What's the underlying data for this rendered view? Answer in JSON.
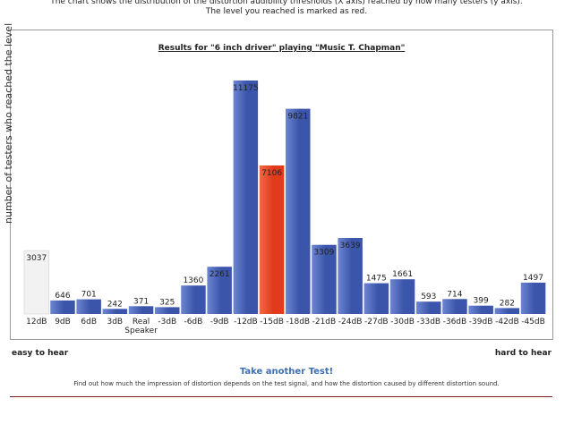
{
  "intro": {
    "line1": "The chart shows the distribution of the distortion audibility thresholds (X axis) reached by how many testers (y axis).",
    "line2": "The level you reached is marked as red."
  },
  "chart_data": {
    "type": "bar",
    "title": "Results for \"6 inch driver\" playing \"Music T. Chapman\"",
    "ylabel": "number of testers who reached the level",
    "xlabel_left": "easy to hear",
    "xlabel_right": "hard to hear",
    "categories": [
      "12dB",
      "9dB",
      "6dB",
      "3dB",
      "Real Speaker",
      "-3dB",
      "-6dB",
      "-9dB",
      "-12dB",
      "-15dB",
      "-18dB",
      "-21dB",
      "-24dB",
      "-27dB",
      "-30dB",
      "-33dB",
      "-36dB",
      "-39dB",
      "-42dB",
      "-45dB"
    ],
    "values": [
      3037,
      646,
      701,
      242,
      371,
      325,
      1360,
      2261,
      11175,
      7106,
      9821,
      3309,
      3639,
      1475,
      1661,
      593,
      714,
      399,
      282,
      1497
    ],
    "highlight_index": 9,
    "ylim": [
      0,
      11175
    ],
    "grid": false,
    "colors": {
      "bar": "#3b55aa",
      "bar_light": "#6d86d2",
      "highlight": "#e23a1c",
      "highlight_light": "#f06a40",
      "first": "#f2f2f2"
    }
  },
  "footer": {
    "link": "Take another Test!",
    "description": "Find out how much the impression of distortion depends on the test signal, and how the distortion caused by different distortion sound."
  }
}
